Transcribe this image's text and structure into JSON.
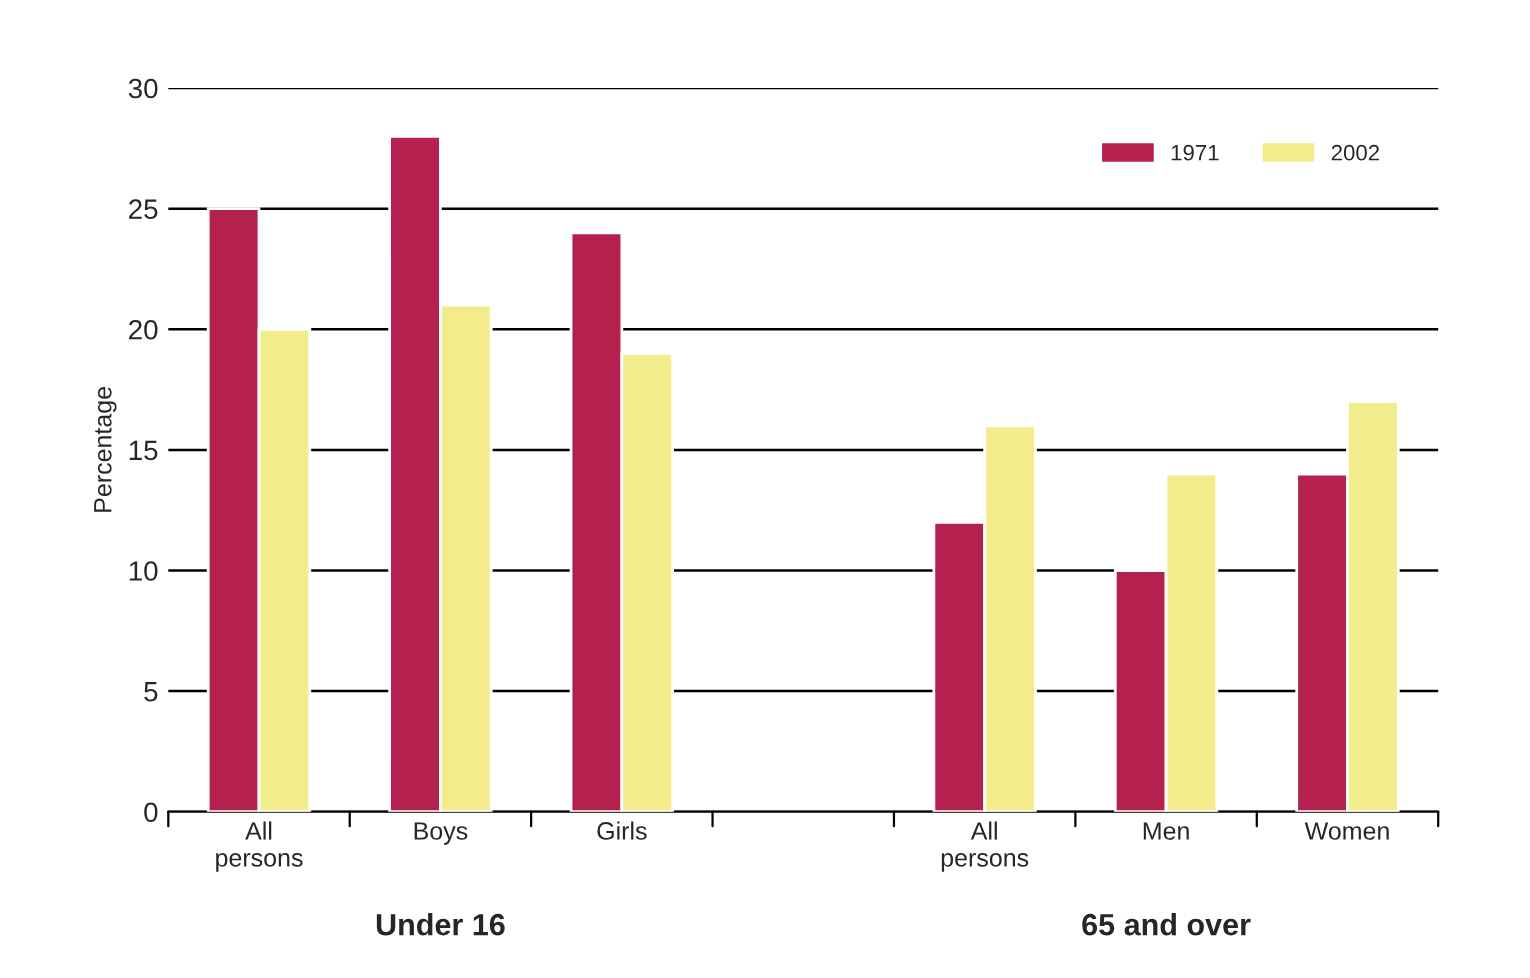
{
  "chart_data": {
    "type": "bar",
    "ylabel": "Percentage",
    "categories": [
      "All\npersons",
      "Boys",
      "Girls",
      null,
      "All\npersons",
      "Men",
      "Women"
    ],
    "series": [
      {
        "name": "1971",
        "color": "#b5214e",
        "values": [
          25,
          28,
          24,
          null,
          12,
          10,
          14
        ]
      },
      {
        "name": "2002",
        "color": "#f3ec8c",
        "values": [
          20,
          21,
          19,
          null,
          16,
          14,
          17
        ]
      }
    ],
    "ylim": [
      0,
      30
    ],
    "yticks": [
      0,
      5,
      10,
      15,
      20,
      25,
      30
    ],
    "grid": "y",
    "legend": "top right",
    "annotations": [
      "Under 16",
      "65 and over"
    ]
  }
}
